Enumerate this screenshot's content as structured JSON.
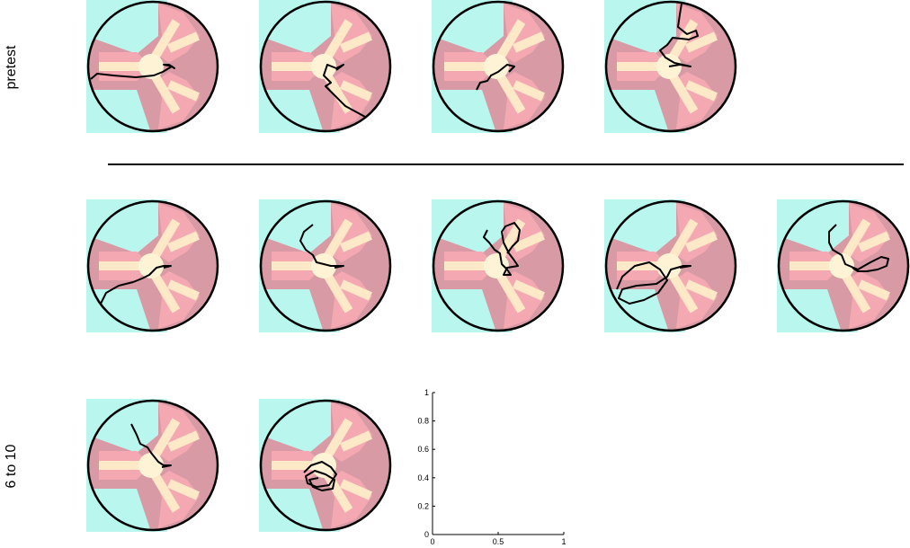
{
  "row_labels": {
    "pretest": "pretest",
    "trials_6_to_10": "6 to 10"
  },
  "colors": {
    "background_quadrant": "#b9f6ee",
    "arena_rim": "#d89aa4",
    "arm_fill": "#f4a9b2",
    "center_fill": "#fff3d6",
    "path_band": "#fde8c8",
    "trajectory": "#000000",
    "border": "#000000"
  },
  "icons": [
    "arena-icon",
    "trajectory-path"
  ],
  "chart_data": {
    "type": "line",
    "title": "",
    "xlabel": "",
    "ylabel": "",
    "xlim": [
      0,
      1
    ],
    "ylim": [
      0,
      1
    ],
    "x_ticks": [
      "0",
      "0.5",
      "1"
    ],
    "y_ticks": [
      "0",
      "0.2",
      "0.4",
      "0.6",
      "0.8",
      "1"
    ],
    "series": []
  }
}
